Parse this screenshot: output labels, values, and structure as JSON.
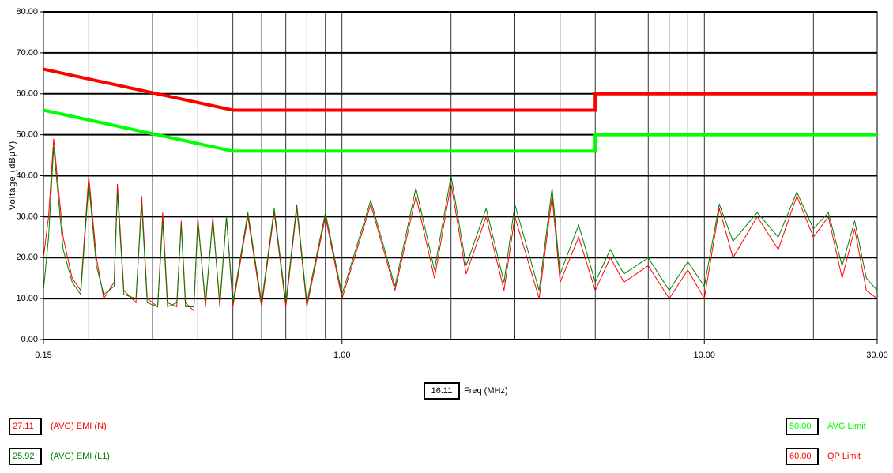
{
  "chart_data": {
    "type": "line",
    "log_x": true,
    "grid": true,
    "y_label": "Voltage (dBµV)",
    "x_label": "Freq (MHz)",
    "cursor_freq": 16.11,
    "xlim": [
      0.15,
      30
    ],
    "ylim": [
      0,
      80
    ],
    "xticks": [
      0.15,
      {
        "value": 1,
        "label": "1.00"
      },
      {
        "value": 10,
        "label": "10.00"
      },
      {
        "value": 30,
        "label": "30.00"
      }
    ],
    "yticks": [
      {
        "value": 0,
        "label": "0.00"
      },
      {
        "value": 10,
        "label": "10.00"
      },
      {
        "value": 20,
        "label": "20.00"
      },
      {
        "value": 30,
        "label": "30.00"
      },
      {
        "value": 40,
        "label": "40.00"
      },
      {
        "value": 50,
        "label": "50.00"
      },
      {
        "value": 60,
        "label": "60.00"
      },
      {
        "value": 70,
        "label": "70.00"
      },
      {
        "value": 80,
        "label": "80.00"
      }
    ],
    "series": [
      {
        "name": "(AVG) EMI (N)",
        "color": "#ff0000",
        "readout": 27.11,
        "x": [
          0.15,
          0.155,
          0.16,
          0.17,
          0.18,
          0.19,
          0.2,
          0.21,
          0.22,
          0.235,
          0.24,
          0.25,
          0.27,
          0.28,
          0.29,
          0.31,
          0.32,
          0.33,
          0.35,
          0.36,
          0.37,
          0.39,
          0.4,
          0.42,
          0.44,
          0.46,
          0.48,
          0.5,
          0.55,
          0.6,
          0.65,
          0.7,
          0.75,
          0.8,
          0.9,
          1.0,
          1.2,
          1.4,
          1.6,
          1.8,
          2.0,
          2.2,
          2.5,
          2.8,
          3.0,
          3.5,
          3.8,
          4.0,
          4.5,
          5.0,
          5.5,
          6,
          7,
          8,
          9,
          10,
          11,
          12,
          14,
          16,
          18,
          20,
          22,
          24,
          26,
          28,
          30
        ],
        "values": [
          20,
          30,
          49,
          25,
          15,
          12,
          40,
          20,
          10,
          14,
          38,
          12,
          9,
          35,
          10,
          8,
          31,
          9,
          8,
          29,
          9,
          7,
          30,
          8,
          30,
          8,
          30,
          8,
          30,
          8,
          31,
          8,
          32,
          8,
          30,
          10,
          33,
          12,
          35,
          15,
          38,
          16,
          30,
          12,
          30,
          10,
          35,
          14,
          25,
          12,
          20,
          14,
          18,
          10,
          17,
          10,
          32,
          20,
          30,
          22,
          35,
          25,
          30,
          15,
          27,
          12,
          10
        ]
      },
      {
        "name": "(AVG) EMI (L1)",
        "color": "#008000",
        "readout": 25.92,
        "x": [
          0.15,
          0.155,
          0.16,
          0.17,
          0.18,
          0.19,
          0.2,
          0.21,
          0.22,
          0.235,
          0.24,
          0.25,
          0.27,
          0.28,
          0.29,
          0.31,
          0.32,
          0.33,
          0.35,
          0.36,
          0.37,
          0.39,
          0.4,
          0.42,
          0.44,
          0.46,
          0.48,
          0.5,
          0.55,
          0.6,
          0.65,
          0.7,
          0.75,
          0.8,
          0.9,
          1.0,
          1.2,
          1.4,
          1.6,
          1.8,
          2.0,
          2.2,
          2.5,
          2.8,
          3.0,
          3.5,
          3.8,
          4.0,
          4.5,
          5.0,
          5.5,
          6,
          7,
          8,
          9,
          10,
          11,
          12,
          14,
          16,
          18,
          20,
          22,
          24,
          26,
          28,
          30
        ],
        "values": [
          12,
          25,
          47,
          22,
          14,
          11,
          38,
          18,
          11,
          13,
          36,
          11,
          10,
          33,
          9,
          8,
          29,
          8,
          9,
          28,
          8,
          8,
          29,
          9,
          29,
          9,
          30,
          9,
          31,
          9,
          32,
          9,
          33,
          9,
          31,
          11,
          34,
          13,
          37,
          17,
          40,
          18,
          32,
          14,
          33,
          12,
          37,
          16,
          28,
          14,
          22,
          16,
          20,
          12,
          19,
          13,
          33,
          24,
          31,
          25,
          36,
          27,
          31,
          18,
          29,
          15,
          12
        ]
      },
      {
        "name": "AVG Limit",
        "color": "#00ff00",
        "readout": {
          "value": 50,
          "label": "50.00"
        },
        "x": [
          0.15,
          0.5,
          5,
          5,
          30
        ],
        "values": [
          56,
          46,
          46,
          50,
          50
        ]
      },
      {
        "name": "QP Limit",
        "color": "#ff0000",
        "readout": {
          "value": 60,
          "label": "60.00"
        },
        "x": [
          0.15,
          0.5,
          5,
          5,
          30
        ],
        "values": [
          66,
          56,
          56,
          60,
          60
        ]
      }
    ]
  }
}
